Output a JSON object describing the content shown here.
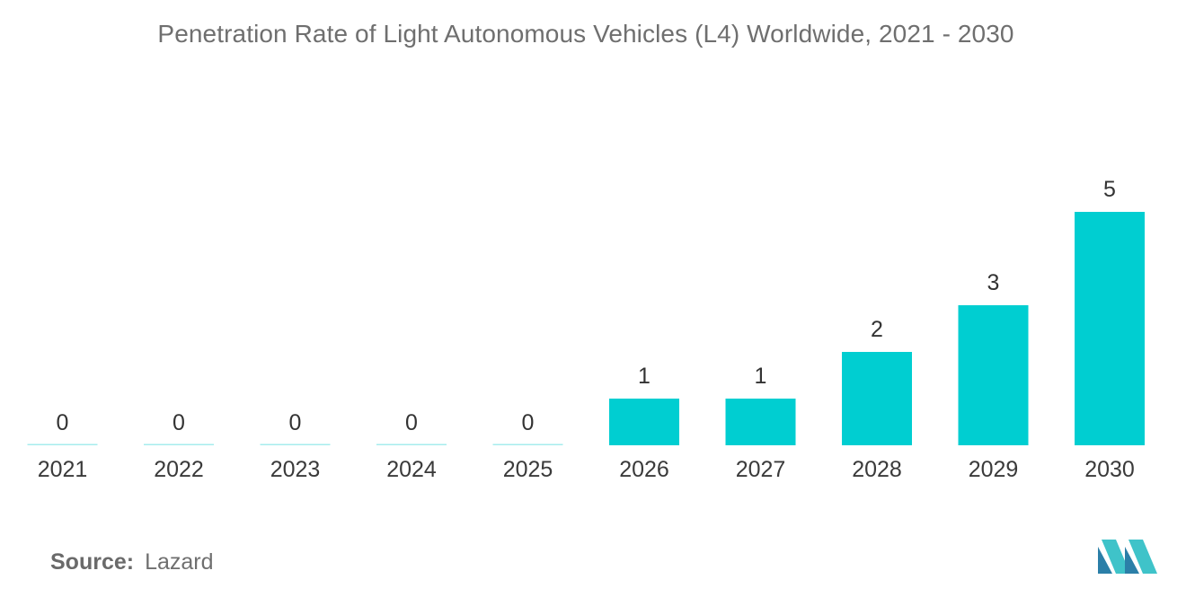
{
  "chart_data": {
    "type": "bar",
    "title": "Penetration Rate of Light Autonomous Vehicles (L4) Worldwide, 2021 - 2030",
    "categories": [
      "2021",
      "2022",
      "2023",
      "2024",
      "2025",
      "2026",
      "2027",
      "2028",
      "2029",
      "2030"
    ],
    "values": [
      0,
      0,
      0,
      0,
      0,
      1,
      1,
      2,
      3,
      5
    ],
    "xlabel": "",
    "ylabel": "",
    "ylim": [
      0,
      5
    ],
    "grid": false,
    "legend": "none",
    "bar_color": "#00CED1"
  },
  "footer": {
    "source_label": "Source:",
    "source_value": "Lazard"
  },
  "logo": {
    "icon": "mordor-intelligence-logo-icon",
    "colors": [
      "#2B7FA8",
      "#3FC3C9"
    ]
  }
}
